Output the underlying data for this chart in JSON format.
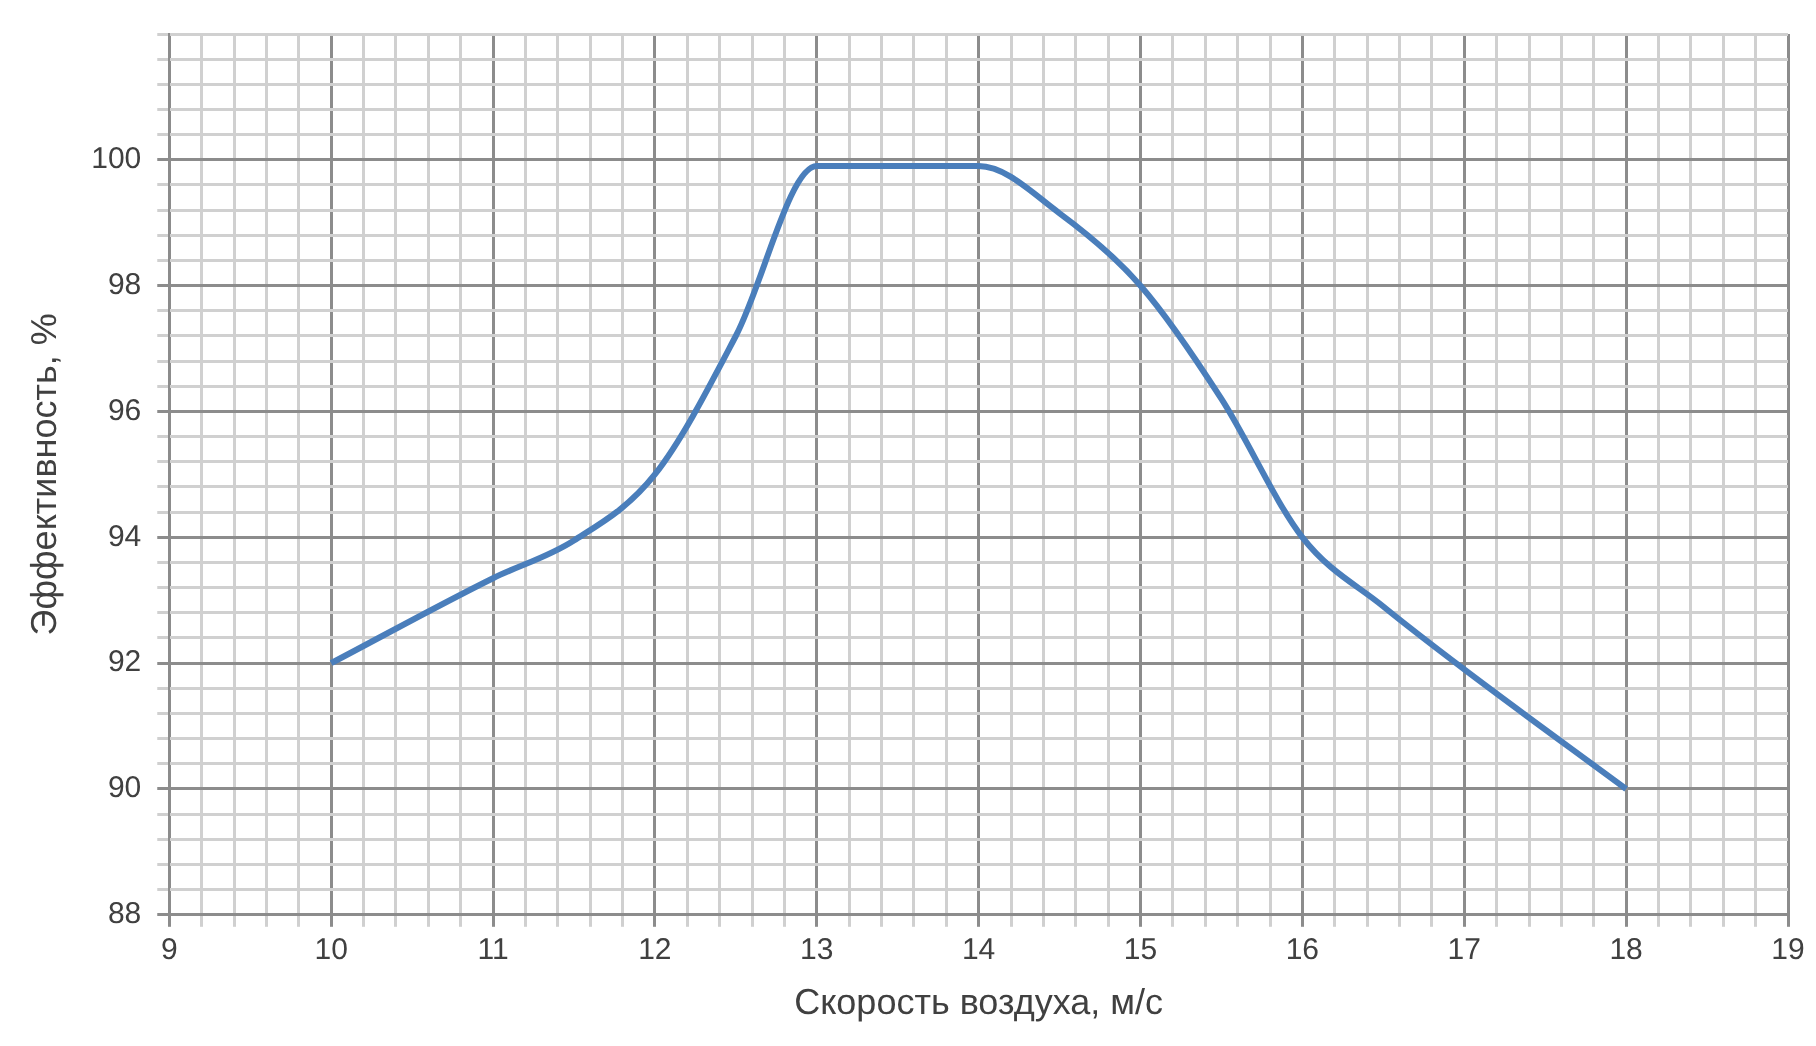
{
  "chart_data": {
    "type": "line",
    "xlabel": "Скорость воздуха, м/с",
    "ylabel": "Эффективность, %",
    "x": [
      10,
      11,
      11.5,
      12,
      12.5,
      13,
      14,
      14.5,
      15,
      15.5,
      16,
      16.5,
      17,
      18
    ],
    "series": [
      {
        "color": "#4a7ebb",
        "values": [
          92,
          93.35,
          93.95,
          95,
          97.2,
          99.9,
          99.9,
          99.15,
          98,
          96.2,
          94,
          92.9,
          91.9,
          90
        ]
      }
    ],
    "xlim": [
      9,
      19
    ],
    "xticks": [
      9,
      {
        "value": 9.2,
        "label": null
      },
      {
        "value": 9.4,
        "label": null
      },
      {
        "value": 9.6,
        "label": null
      },
      {
        "value": 9.8,
        "label": null
      },
      10,
      {
        "value": 10.2,
        "label": null
      },
      {
        "value": 10.4,
        "label": null
      },
      {
        "value": 10.6,
        "label": null
      },
      {
        "value": 10.8,
        "label": null
      },
      11,
      {
        "value": 11.2,
        "label": null
      },
      {
        "value": 11.4,
        "label": null
      },
      {
        "value": 11.6,
        "label": null
      },
      {
        "value": 11.8,
        "label": null
      },
      12,
      {
        "value": 12.2,
        "label": null
      },
      {
        "value": 12.4,
        "label": null
      },
      {
        "value": 12.6,
        "label": null
      },
      {
        "value": 12.8,
        "label": null
      },
      13,
      {
        "value": 13.2,
        "label": null
      },
      {
        "value": 13.4,
        "label": null
      },
      {
        "value": 13.6,
        "label": null
      },
      {
        "value": 13.8,
        "label": null
      },
      14,
      {
        "value": 14.2,
        "label": null
      },
      {
        "value": 14.4,
        "label": null
      },
      {
        "value": 14.6,
        "label": null
      },
      {
        "value": 14.8,
        "label": null
      },
      15,
      {
        "value": 15.2,
        "label": null
      },
      {
        "value": 15.4,
        "label": null
      },
      {
        "value": 15.6,
        "label": null
      },
      {
        "value": 15.8,
        "label": null
      },
      16,
      {
        "value": 16.2,
        "label": null
      },
      {
        "value": 16.4,
        "label": null
      },
      {
        "value": 16.6,
        "label": null
      },
      {
        "value": 16.8,
        "label": null
      },
      17,
      {
        "value": 17.2,
        "label": null
      },
      {
        "value": 17.4,
        "label": null
      },
      {
        "value": 17.6,
        "label": null
      },
      {
        "value": 17.8,
        "label": null
      },
      18,
      {
        "value": 18.2,
        "label": null
      },
      {
        "value": 18.4,
        "label": null
      },
      {
        "value": 18.6,
        "label": null
      },
      {
        "value": 18.8,
        "label": null
      },
      19
    ],
    "ylim": [
      88,
      102
    ],
    "yticks": [
      88,
      {
        "value": 88.4,
        "label": null
      },
      {
        "value": 88.8,
        "label": null
      },
      {
        "value": 89.2,
        "label": null
      },
      {
        "value": 89.6,
        "label": null
      },
      90,
      {
        "value": 90.4,
        "label": null
      },
      {
        "value": 90.8,
        "label": null
      },
      {
        "value": 91.2,
        "label": null
      },
      {
        "value": 91.6,
        "label": null
      },
      92,
      {
        "value": 92.4,
        "label": null
      },
      {
        "value": 92.8,
        "label": null
      },
      {
        "value": 93.2,
        "label": null
      },
      {
        "value": 93.6,
        "label": null
      },
      94,
      {
        "value": 94.4,
        "label": null
      },
      {
        "value": 94.8,
        "label": null
      },
      {
        "value": 95.2,
        "label": null
      },
      {
        "value": 95.6,
        "label": null
      },
      96,
      {
        "value": 96.4,
        "label": null
      },
      {
        "value": 96.8,
        "label": null
      },
      {
        "value": 97.2,
        "label": null
      },
      {
        "value": 97.6,
        "label": null
      },
      98,
      {
        "value": 98.4,
        "label": null
      },
      {
        "value": 98.8,
        "label": null
      },
      {
        "value": 99.2,
        "label": null
      },
      {
        "value": 99.6,
        "label": null
      },
      100,
      {
        "value": 100.4,
        "label": null
      },
      {
        "value": 100.8,
        "label": null
      },
      {
        "value": 101.2,
        "label": null
      },
      {
        "value": 101.6,
        "label": null
      },
      {
        "value": 102,
        "label": null
      }
    ],
    "grid": true,
    "legend": false,
    "marker": "none",
    "line_style": "solid"
  }
}
